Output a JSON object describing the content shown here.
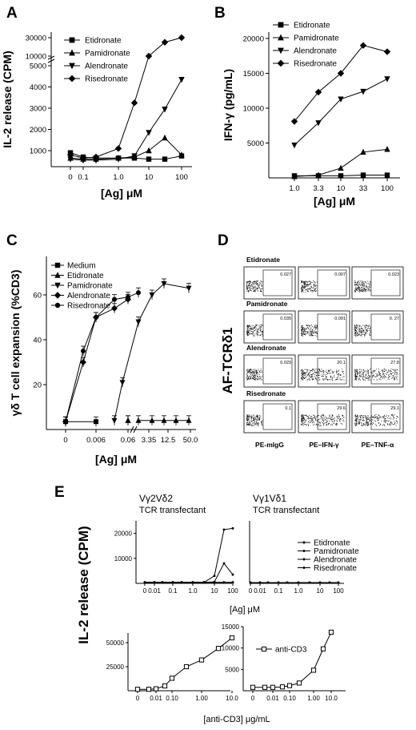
{
  "chart_data": [
    {
      "panel": "A",
      "type": "line",
      "ylabel": "IL-2 release (CPM)",
      "xlabel": "[Ag] μM",
      "x": [
        0,
        0.1,
        0.3,
        1.0,
        3,
        10,
        30,
        100
      ],
      "xticks": [
        "0",
        "0.1",
        "1.0",
        "10",
        "100"
      ],
      "yticks": [
        "1000",
        "2000",
        "3000",
        "4000",
        "5000",
        "10000",
        "30000"
      ],
      "series": [
        {
          "name": "Etidronate",
          "marker": "square",
          "values": [
            900,
            700,
            650,
            650,
            650,
            600,
            600,
            750
          ]
        },
        {
          "name": "Pamidronate",
          "marker": "triangle",
          "values": [
            650,
            600,
            600,
            650,
            700,
            1000,
            1600,
            800
          ]
        },
        {
          "name": "Alendronate",
          "marker": "triangle-down",
          "values": [
            600,
            550,
            550,
            600,
            750,
            1850,
            2950,
            4350
          ]
        },
        {
          "name": "Risedronate",
          "marker": "diamond",
          "values": [
            800,
            650,
            700,
            1100,
            3250,
            10000,
            25000,
            30000
          ]
        }
      ]
    },
    {
      "panel": "B",
      "type": "line",
      "ylabel": "IFN-γ (pg/mL)",
      "xlabel": "[Ag] μM",
      "x": [
        1.0,
        3.3,
        10,
        33,
        100
      ],
      "xticks": [
        "1.0",
        "3.3",
        "10",
        "33",
        "100"
      ],
      "yticks": [
        "5000",
        "10000",
        "15000",
        "20000"
      ],
      "ylim": [
        0,
        20000
      ],
      "series": [
        {
          "name": "Etidronate",
          "marker": "square",
          "values": [
            300,
            300,
            300,
            400,
            400
          ]
        },
        {
          "name": "Pamidronate",
          "marker": "triangle",
          "values": [
            200,
            400,
            1400,
            3700,
            4100
          ]
        },
        {
          "name": "Alendronate",
          "marker": "triangle-down",
          "values": [
            4700,
            7900,
            11300,
            12400,
            14200
          ]
        },
        {
          "name": "Risedronate",
          "marker": "diamond",
          "values": [
            8100,
            12300,
            15000,
            19000,
            18100
          ]
        }
      ]
    },
    {
      "panel": "C",
      "type": "line",
      "ylabel": "γδ T cell expansion (%CD3)",
      "xlabel": "[Ag] μM",
      "xticks": [
        "0",
        "0.006",
        "0.06",
        "3.35",
        "12.5",
        "50.0"
      ],
      "yticks": [
        "20",
        "40",
        "60"
      ],
      "ylim": [
        0,
        75
      ],
      "segments": [
        {
          "x": [
            "0",
            "0.006",
            "0.06"
          ],
          "x2": [
            "3.35",
            "12.5",
            "50.0"
          ]
        }
      ],
      "series": [
        {
          "name": "Medium",
          "marker": "square",
          "points": [
            [
              0,
              3.5
            ],
            [
              0.006,
              3.5
            ]
          ]
        },
        {
          "name": "Etidronate",
          "marker": "triangle",
          "points": [
            [
              0.06,
              4
            ],
            [
              0.1,
              4
            ],
            [
              3.35,
              4
            ],
            [
              6,
              4
            ],
            [
              12.5,
              4
            ],
            [
              25,
              4
            ],
            [
              50,
              4
            ]
          ]
        },
        {
          "name": "Pamidronate",
          "marker": "triangle-down",
          "points": [
            [
              0.02,
              4
            ],
            [
              0.04,
              21
            ],
            [
              3.35,
              48
            ],
            [
              6,
              60
            ],
            [
              12.5,
              65
            ],
            [
              50,
              63
            ]
          ]
        },
        {
          "name": "Alendronate",
          "marker": "diamond",
          "points": [
            [
              0,
              3.5
            ],
            [
              0.003,
              30
            ],
            [
              0.006,
              50
            ],
            [
              0.02,
              54
            ],
            [
              0.06,
              58
            ]
          ]
        },
        {
          "name": "Risedronate",
          "marker": "circle",
          "points": [
            [
              0,
              3.5
            ],
            [
              0.003,
              35
            ],
            [
              0.006,
              50
            ],
            [
              0.02,
              58
            ],
            [
              0.06,
              59
            ],
            [
              3.35,
              61
            ]
          ]
        }
      ]
    },
    {
      "panel": "D",
      "type": "flow-cytometry",
      "ylabel": "AF-TCRδ1",
      "columns": [
        "PE-mIgG",
        "PE–IFN-γ",
        "PE–TNF-α"
      ],
      "rows": [
        {
          "label": "Etidronate",
          "values": [
            "0.027",
            "0.007",
            "0.023"
          ]
        },
        {
          "label": "Pamidronate",
          "values": [
            "0.035",
            "0.091",
            "0. 27"
          ]
        },
        {
          "label": "Alendronate",
          "values": [
            "0.029",
            "20.1",
            "27.8"
          ]
        },
        {
          "label": "Risedronate",
          "values": [
            "0.1",
            "29.6",
            "29.1"
          ]
        }
      ]
    },
    {
      "panel": "E",
      "type": "line",
      "ylabel": "IL-2 release (CPM)",
      "subplots": [
        {
          "title_line1": "Vγ2Vδ2",
          "title_line2": "TCR transfectant",
          "x": [
            0,
            0.01,
            0.03,
            0.1,
            0.3,
            1.0,
            3,
            10,
            30,
            100
          ],
          "xticks": [
            "0",
            "0.01",
            "0.1",
            "1.0",
            "10",
            "100"
          ],
          "yticks": [
            "10000",
            "20000"
          ],
          "ylim": [
            0,
            25000
          ],
          "series": [
            {
              "name": "Etidronate",
              "values": [
                400,
                400,
                400,
                400,
                400,
                400,
                400,
                400,
                400,
                400
              ]
            },
            {
              "name": "Pamidronate",
              "values": [
                400,
                400,
                400,
                400,
                400,
                400,
                400,
                400,
                400,
                400
              ]
            },
            {
              "name": "Alendronate",
              "values": [
                400,
                400,
                400,
                400,
                400,
                400,
                400,
                600,
                8000,
                3500
              ]
            },
            {
              "name": "Risedronate",
              "values": [
                400,
                400,
                400,
                400,
                400,
                400,
                400,
                3000,
                21500,
                22000
              ]
            }
          ]
        },
        {
          "title_line1": "Vγ1Vδ1",
          "title_line2": "TCR transfectant",
          "x": [
            0,
            0.01,
            0.03,
            0.1,
            0.3,
            1.0,
            3,
            10,
            30,
            100
          ],
          "xticks": [
            "0",
            "0.01",
            "0.1",
            "1.0",
            "10",
            "100"
          ],
          "series": [
            {
              "name": "Etidronate",
              "values": [
                300,
                300,
                300,
                300,
                300,
                300,
                300,
                300,
                300,
                300
              ]
            },
            {
              "name": "Pamidronate",
              "values": [
                300,
                300,
                300,
                300,
                300,
                300,
                300,
                300,
                300,
                300
              ]
            },
            {
              "name": "Alendronate",
              "values": [
                300,
                300,
                300,
                300,
                300,
                300,
                300,
                300,
                300,
                300
              ]
            },
            {
              "name": "Risedronate",
              "values": [
                300,
                300,
                300,
                300,
                300,
                300,
                300,
                300,
                300,
                300
              ]
            }
          ]
        },
        {
          "x": [
            0,
            0.003,
            0.01,
            0.03,
            0.1,
            0.3,
            1.0,
            3,
            10
          ],
          "xticks": [
            "0",
            "0.01",
            "0.10",
            "1.00",
            "10.0"
          ],
          "yticks": [
            "25000",
            "50000"
          ],
          "ylim": [
            0,
            60000
          ],
          "series": [
            {
              "name": "anti-CD3",
              "marker": "open-square",
              "values": [
                1500,
                1500,
                2000,
                5000,
                13000,
                25000,
                32000,
                44000,
                55000
              ]
            }
          ]
        },
        {
          "x": [
            0,
            0.003,
            0.01,
            0.03,
            0.1,
            0.3,
            1.0,
            3,
            10
          ],
          "xticks": [
            "0",
            "0.01",
            "0.10",
            "1.00",
            "10.0"
          ],
          "yticks": [
            "5000",
            "10000",
            "15000"
          ],
          "ylim": [
            0,
            15000
          ],
          "series": [
            {
              "name": "anti-CD3",
              "marker": "open-square",
              "values": [
                800,
                800,
                800,
                900,
                1200,
                1800,
                4800,
                9800,
                13700
              ]
            }
          ]
        }
      ],
      "xlabel_top": "[Ag] μM",
      "xlabel_bottom": "[anti-CD3] μg/mL",
      "legend_top_right": [
        "Etidronate",
        "Pamidronate",
        "Alendronate",
        "Risedronate"
      ],
      "legend_bottom_right": "anti-CD3"
    }
  ]
}
